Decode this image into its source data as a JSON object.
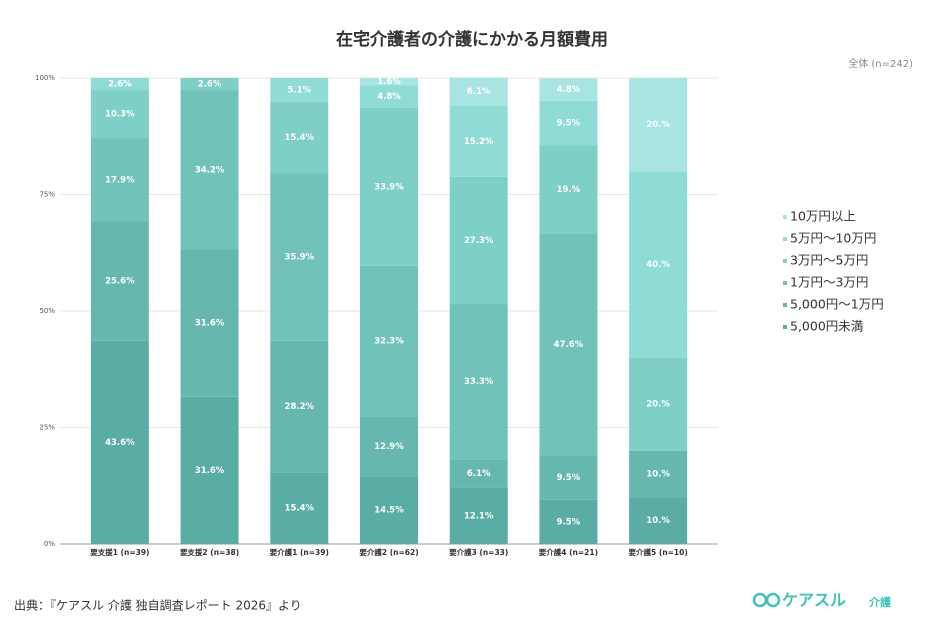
{
  "chart_data": {
    "type": "stacked_bar_100",
    "title": "在宅介護者の介護にかかる月額費用",
    "subtitle": "全体 (n=242)",
    "categories": [
      "要支援1 (n=39)",
      "要支援2 (n=38)",
      "要介護1 (n=39)",
      "要介護2 (n=62)",
      "要介護3 (n=33)",
      "要介護4 (n=21)",
      "要介護5 (n=10)"
    ],
    "series": [
      {
        "name": "5,000円未満",
        "color": "#5aada4",
        "values": [
          43.6,
          31.6,
          15.4,
          14.5,
          12.1,
          9.5,
          10
        ],
        "value_labels": [
          "43.6%",
          "31.6%",
          "15.4%",
          "14.5%",
          "12.1%",
          "9.5%",
          "10.%"
        ]
      },
      {
        "name": "5,000円～1万円",
        "color": "#66b8af",
        "values": [
          25.6,
          31.6,
          28.2,
          12.9,
          6.1,
          9.5,
          10
        ],
        "value_labels": [
          "25.6%",
          "31.6%",
          "28.2%",
          "12.9%",
          "6.1%",
          "9.5%",
          "10.%"
        ]
      },
      {
        "name": "1万円～3万円",
        "color": "#71c3ba",
        "values": [
          17.9,
          34.2,
          35.9,
          32.3,
          33.3,
          47.6,
          null
        ],
        "value_labels": [
          "17.9%",
          "34.2%",
          "35.9%",
          "32.3%",
          "33.3%",
          "47.6%",
          null
        ]
      },
      {
        "name": "3万円～5万円",
        "color": "#7ecfc6",
        "values": [
          10.3,
          2.6,
          15.4,
          33.9,
          27.3,
          19.0,
          20
        ],
        "value_labels": [
          "10.3%",
          "2.6%",
          "15.4%",
          "33.9%",
          "27.3%",
          "19.%",
          "20.%"
        ]
      },
      {
        "name": "5万円～10万円",
        "color": "#8fdbd6",
        "values": [
          2.6,
          null,
          5.1,
          4.8,
          15.2,
          9.5,
          40
        ],
        "value_labels": [
          "2.6%",
          null,
          "5.1%",
          "4.8%",
          "15.2%",
          "9.5%",
          "40.%"
        ]
      },
      {
        "name": "10万円以上",
        "color": "#a8e4e1",
        "values": [
          null,
          null,
          null,
          1.6,
          6.1,
          4.8,
          20
        ],
        "value_labels": [
          null,
          null,
          null,
          "1.6%",
          "6.1%",
          "4.8%",
          "20.%"
        ]
      }
    ],
    "ylim": [
      0,
      100
    ],
    "yticks": [
      {
        "value": 0,
        "label": "0%"
      },
      {
        "value": 25,
        "label": "25%"
      },
      {
        "value": 50,
        "label": "50%"
      },
      {
        "value": 75,
        "label": "75%"
      },
      {
        "value": 100,
        "label": "100%"
      }
    ],
    "grid": true,
    "legend": "right",
    "source": "出典：『ケアスル 介護 独自調査レポート 2026』より",
    "logo": {
      "text": "ケアスル",
      "sub": "介護"
    }
  }
}
